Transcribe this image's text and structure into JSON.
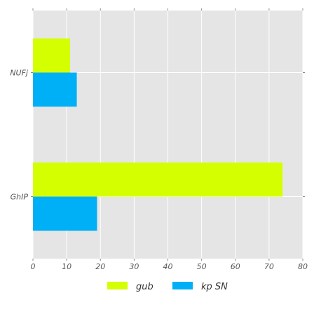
{
  "chart_data": {
    "type": "bar",
    "orientation": "horizontal",
    "categories": [
      "NUFj",
      "GhIP"
    ],
    "series": [
      {
        "name": "gub",
        "values": [
          11,
          74
        ],
        "color": "#d4ff00"
      },
      {
        "name": "kp SN",
        "values": [
          13,
          19
        ],
        "color": "#00b0f6"
      }
    ],
    "xlim": [
      0,
      80
    ],
    "xticks": [
      0,
      10,
      20,
      30,
      40,
      50,
      60,
      70,
      80
    ],
    "grid": true,
    "legend_position": "bottom",
    "style": {
      "background": "#e5e5e5",
      "gridline": "#ffffff"
    }
  }
}
